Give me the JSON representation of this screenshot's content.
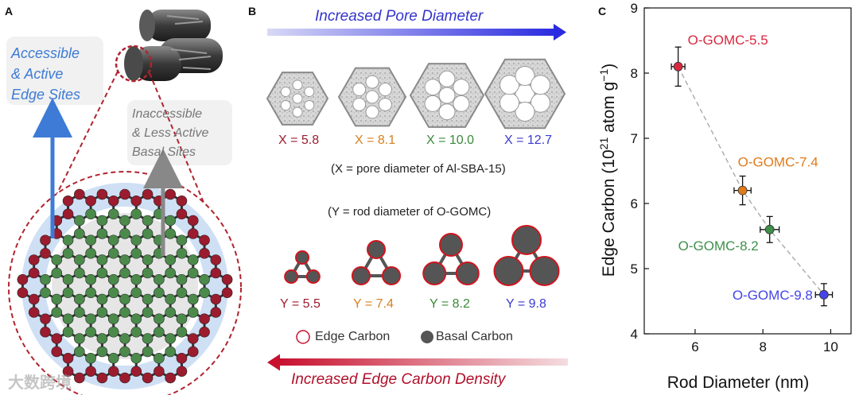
{
  "panel_a": {
    "letter": "A",
    "accessible": [
      "Accessible",
      "& Active",
      "Edge Sites"
    ],
    "inaccessible": [
      "Inaccessible",
      "& Less Active",
      "Basal Sites"
    ],
    "colors": {
      "edge": "#9b1c2e",
      "basal": "#4b8a4b",
      "accessible_text": "#3d7bd6",
      "inaccessible_text": "#777777"
    }
  },
  "panel_b": {
    "letter": "B",
    "top_arrow_label": "Increased Pore Diameter",
    "bottom_arrow_label": "Increased Edge Carbon Density",
    "x_labels": [
      {
        "text": "X = 5.8",
        "color": "#9b1c2e"
      },
      {
        "text": "X = 8.1",
        "color": "#d6801e"
      },
      {
        "text": "X = 10.0",
        "color": "#3a8a3a"
      },
      {
        "text": "X = 12.7",
        "color": "#3a3ad0"
      }
    ],
    "x_note": "(X = pore diameter of Al-SBA-15)",
    "y_note": "(Y = rod diameter of O-GOMC)",
    "y_labels": [
      {
        "text": "Y = 5.5",
        "color": "#9b1c2e"
      },
      {
        "text": "Y = 7.4",
        "color": "#d6801e"
      },
      {
        "text": "Y = 8.2",
        "color": "#3a8a3a"
      },
      {
        "text": "Y = 9.8",
        "color": "#3a3ad0"
      }
    ],
    "legend": {
      "edge": "Edge Carbon",
      "basal": "Basal Carbon"
    }
  },
  "panel_c": {
    "letter": "C"
  },
  "watermark": "大数跨境",
  "chart_data": {
    "type": "scatter",
    "xlabel": "Rod Diameter (nm)",
    "ylabel_main": "Edge Carbon (10",
    "ylabel_sup": "21",
    "ylabel_tail": " atom g",
    "ylabel_sup2": "−1",
    "ylabel_close": ")",
    "xlim": [
      4.5,
      10.6
    ],
    "ylim": [
      4,
      9
    ],
    "xticks": [
      6,
      8,
      10
    ],
    "yticks": [
      4,
      5,
      6,
      7,
      8,
      9
    ],
    "grid": false,
    "trend_line": "dashed",
    "points": [
      {
        "name": "O-GOMC-5.5",
        "x": 5.5,
        "y": 8.1,
        "xerr": 0.2,
        "yerr": 0.3,
        "color": "#d8283f"
      },
      {
        "name": "O-GOMC-7.4",
        "x": 7.4,
        "y": 6.2,
        "xerr": 0.25,
        "yerr": 0.22,
        "color": "#e07b1a"
      },
      {
        "name": "O-GOMC-8.2",
        "x": 8.2,
        "y": 5.6,
        "xerr": 0.28,
        "yerr": 0.2,
        "color": "#3f8f4a"
      },
      {
        "name": "O-GOMC-9.8",
        "x": 9.8,
        "y": 4.6,
        "xerr": 0.25,
        "yerr": 0.17,
        "color": "#4444e8"
      }
    ]
  }
}
